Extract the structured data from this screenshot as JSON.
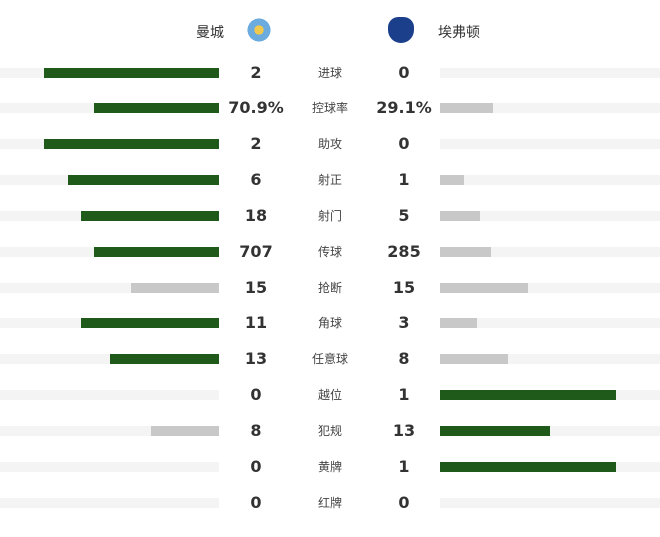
{
  "header": {
    "home": "曼城",
    "away": "埃弗顿",
    "home_logo": "manchester-city-crest",
    "away_logo": "everton-crest"
  },
  "colors": {
    "leader": "#1f5a1a",
    "trailer": "#c8c8c8",
    "track": "#f4f4f4"
  },
  "stats": [
    {
      "label": "进球",
      "home": "2",
      "away": "0",
      "home_fill": 80,
      "away_fill": 0,
      "leader": "home"
    },
    {
      "label": "控球率",
      "home": "70.9%",
      "away": "29.1%",
      "home_fill": 57,
      "away_fill": 24,
      "leader": "home"
    },
    {
      "label": "助攻",
      "home": "2",
      "away": "0",
      "home_fill": 80,
      "away_fill": 0,
      "leader": "home"
    },
    {
      "label": "射正",
      "home": "6",
      "away": "1",
      "home_fill": 69,
      "away_fill": 11,
      "leader": "home"
    },
    {
      "label": "射门",
      "home": "18",
      "away": "5",
      "home_fill": 63,
      "away_fill": 18,
      "leader": "home"
    },
    {
      "label": "传球",
      "home": "707",
      "away": "285",
      "home_fill": 57,
      "away_fill": 23,
      "leader": "home"
    },
    {
      "label": "抢断",
      "home": "15",
      "away": "15",
      "home_fill": 40,
      "away_fill": 40,
      "leader": "none"
    },
    {
      "label": "角球",
      "home": "11",
      "away": "3",
      "home_fill": 63,
      "away_fill": 17,
      "leader": "home"
    },
    {
      "label": "任意球",
      "home": "13",
      "away": "8",
      "home_fill": 50,
      "away_fill": 31,
      "leader": "home"
    },
    {
      "label": "越位",
      "home": "0",
      "away": "1",
      "home_fill": 0,
      "away_fill": 80,
      "leader": "away"
    },
    {
      "label": "犯规",
      "home": "8",
      "away": "13",
      "home_fill": 31,
      "away_fill": 50,
      "leader": "away"
    },
    {
      "label": "黄牌",
      "home": "0",
      "away": "1",
      "home_fill": 0,
      "away_fill": 80,
      "leader": "away"
    },
    {
      "label": "红牌",
      "home": "0",
      "away": "0",
      "home_fill": 0,
      "away_fill": 0,
      "leader": "none"
    }
  ]
}
